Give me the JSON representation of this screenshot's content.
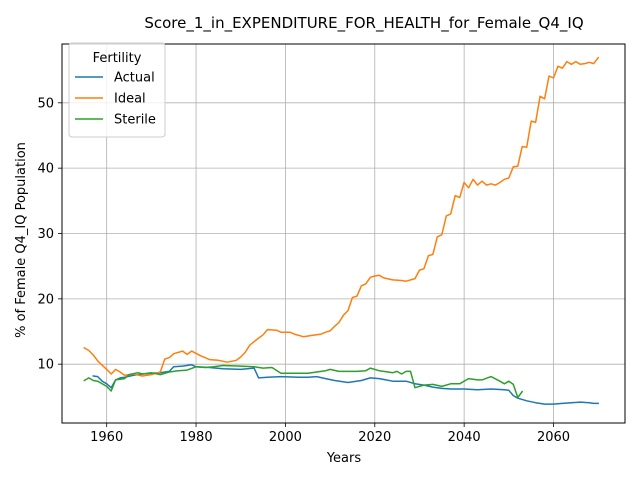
{
  "chart_data": {
    "type": "line",
    "title": "Score_1_in_EXPENDITURE_FOR_HEALTH_for_Female_Q4_IQ",
    "xlabel": "Years",
    "ylabel": "% of Female Q4_IQ Population",
    "xlim": [
      1950,
      2076
    ],
    "ylim": [
      1,
      59
    ],
    "xticks": [
      1960,
      1980,
      2000,
      2020,
      2040,
      2060
    ],
    "yticks": [
      10,
      20,
      30,
      40,
      50
    ],
    "grid": true,
    "legend": {
      "title": "Fertility",
      "placement": "top-left"
    },
    "series": [
      {
        "name": "Actual",
        "color": "#1f77b4",
        "points": [
          [
            1957,
            8.2
          ],
          [
            1958,
            8.1
          ],
          [
            1959,
            7.4
          ],
          [
            1960,
            7.0
          ],
          [
            1961,
            6.4
          ],
          [
            1962,
            7.6
          ],
          [
            1963,
            7.9
          ],
          [
            1964,
            8.0
          ],
          [
            1966,
            8.3
          ],
          [
            1968,
            8.5
          ],
          [
            1970,
            8.6
          ],
          [
            1972,
            8.7
          ],
          [
            1974,
            8.9
          ],
          [
            1975,
            9.6
          ],
          [
            1977,
            9.7
          ],
          [
            1979,
            9.9
          ],
          [
            1980,
            9.6
          ],
          [
            1983,
            9.5
          ],
          [
            1986,
            9.3
          ],
          [
            1990,
            9.2
          ],
          [
            1993,
            9.4
          ],
          [
            1994,
            7.9
          ],
          [
            1996,
            8.0
          ],
          [
            1999,
            8.1
          ],
          [
            2003,
            8.0
          ],
          [
            2005,
            8.0
          ],
          [
            2007,
            8.1
          ],
          [
            2009,
            7.8
          ],
          [
            2011,
            7.5
          ],
          [
            2014,
            7.2
          ],
          [
            2017,
            7.5
          ],
          [
            2019,
            7.9
          ],
          [
            2021,
            7.8
          ],
          [
            2024,
            7.4
          ],
          [
            2027,
            7.4
          ],
          [
            2029,
            7.0
          ],
          [
            2031,
            6.8
          ],
          [
            2033,
            6.5
          ],
          [
            2035,
            6.3
          ],
          [
            2037,
            6.2
          ],
          [
            2040,
            6.2
          ],
          [
            2043,
            6.1
          ],
          [
            2046,
            6.2
          ],
          [
            2049,
            6.1
          ],
          [
            2050,
            6.0
          ],
          [
            2051,
            5.2
          ],
          [
            2052,
            4.8
          ],
          [
            2054,
            4.4
          ],
          [
            2056,
            4.1
          ],
          [
            2058,
            3.9
          ],
          [
            2060,
            3.9
          ],
          [
            2062,
            4.0
          ],
          [
            2064,
            4.1
          ],
          [
            2066,
            4.2
          ],
          [
            2068,
            4.1
          ],
          [
            2069,
            4.0
          ],
          [
            2070,
            4.0
          ]
        ]
      },
      {
        "name": "Ideal",
        "color": "#ff7f0e",
        "points": [
          [
            1955,
            12.5
          ],
          [
            1956,
            12.1
          ],
          [
            1957,
            11.4
          ],
          [
            1958,
            10.5
          ],
          [
            1960,
            9.2
          ],
          [
            1961,
            8.5
          ],
          [
            1962,
            9.2
          ],
          [
            1963,
            8.8
          ],
          [
            1964,
            8.3
          ],
          [
            1966,
            8.5
          ],
          [
            1968,
            8.2
          ],
          [
            1970,
            8.4
          ],
          [
            1972,
            8.8
          ],
          [
            1973,
            10.8
          ],
          [
            1974,
            11.0
          ],
          [
            1975,
            11.6
          ],
          [
            1977,
            12.0
          ],
          [
            1978,
            11.5
          ],
          [
            1979,
            12.0
          ],
          [
            1981,
            11.3
          ],
          [
            1983,
            10.7
          ],
          [
            1985,
            10.6
          ],
          [
            1987,
            10.3
          ],
          [
            1989,
            10.6
          ],
          [
            1990,
            11.1
          ],
          [
            1991,
            11.8
          ],
          [
            1992,
            12.9
          ],
          [
            1994,
            14.0
          ],
          [
            1995,
            14.5
          ],
          [
            1996,
            15.3
          ],
          [
            1998,
            15.2
          ],
          [
            1999,
            14.9
          ],
          [
            2001,
            14.9
          ],
          [
            2002,
            14.6
          ],
          [
            2004,
            14.2
          ],
          [
            2006,
            14.4
          ],
          [
            2008,
            14.6
          ],
          [
            2009,
            14.9
          ],
          [
            2010,
            15.1
          ],
          [
            2011,
            15.8
          ],
          [
            2012,
            16.4
          ],
          [
            2013,
            17.5
          ],
          [
            2014,
            18.2
          ],
          [
            2015,
            20.2
          ],
          [
            2016,
            20.4
          ],
          [
            2017,
            22.0
          ],
          [
            2018,
            22.3
          ],
          [
            2019,
            23.3
          ],
          [
            2020,
            23.5
          ],
          [
            2021,
            23.6
          ],
          [
            2022,
            23.2
          ],
          [
            2024,
            22.9
          ],
          [
            2026,
            22.8
          ],
          [
            2027,
            22.7
          ],
          [
            2029,
            23.1
          ],
          [
            2030,
            24.4
          ],
          [
            2031,
            24.6
          ],
          [
            2032,
            26.6
          ],
          [
            2033,
            26.8
          ],
          [
            2034,
            29.5
          ],
          [
            2035,
            29.8
          ],
          [
            2036,
            32.7
          ],
          [
            2037,
            33.0
          ],
          [
            2038,
            35.8
          ],
          [
            2039,
            35.5
          ],
          [
            2040,
            37.8
          ],
          [
            2041,
            37.0
          ],
          [
            2042,
            38.3
          ],
          [
            2043,
            37.4
          ],
          [
            2044,
            38.0
          ],
          [
            2045,
            37.4
          ],
          [
            2046,
            37.6
          ],
          [
            2047,
            37.4
          ],
          [
            2048,
            37.8
          ],
          [
            2049,
            38.3
          ],
          [
            2050,
            38.5
          ],
          [
            2051,
            40.2
          ],
          [
            2052,
            40.3
          ],
          [
            2053,
            43.3
          ],
          [
            2054,
            43.2
          ],
          [
            2055,
            47.2
          ],
          [
            2056,
            47.0
          ],
          [
            2057,
            51.0
          ],
          [
            2058,
            50.6
          ],
          [
            2059,
            54.1
          ],
          [
            2060,
            53.8
          ],
          [
            2061,
            55.6
          ],
          [
            2062,
            55.3
          ],
          [
            2063,
            56.3
          ],
          [
            2064,
            55.9
          ],
          [
            2065,
            56.3
          ],
          [
            2066,
            55.9
          ],
          [
            2067,
            56.0
          ],
          [
            2068,
            56.2
          ],
          [
            2069,
            56.0
          ],
          [
            2070,
            56.9
          ]
        ]
      },
      {
        "name": "Sterile",
        "color": "#2ca02c",
        "points": [
          [
            1955,
            7.5
          ],
          [
            1956,
            7.9
          ],
          [
            1957,
            7.5
          ],
          [
            1958,
            7.4
          ],
          [
            1960,
            6.6
          ],
          [
            1961,
            5.9
          ],
          [
            1962,
            7.6
          ],
          [
            1964,
            7.8
          ],
          [
            1965,
            8.4
          ],
          [
            1967,
            8.7
          ],
          [
            1968,
            8.5
          ],
          [
            1970,
            8.7
          ],
          [
            1972,
            8.4
          ],
          [
            1974,
            8.8
          ],
          [
            1976,
            9.0
          ],
          [
            1978,
            9.1
          ],
          [
            1980,
            9.6
          ],
          [
            1982,
            9.5
          ],
          [
            1984,
            9.6
          ],
          [
            1986,
            9.8
          ],
          [
            1990,
            9.7
          ],
          [
            1993,
            9.6
          ],
          [
            1995,
            9.4
          ],
          [
            1997,
            9.5
          ],
          [
            1999,
            8.6
          ],
          [
            2001,
            8.6
          ],
          [
            2003,
            8.6
          ],
          [
            2005,
            8.6
          ],
          [
            2007,
            8.8
          ],
          [
            2009,
            9.0
          ],
          [
            2010,
            9.2
          ],
          [
            2012,
            8.9
          ],
          [
            2014,
            8.9
          ],
          [
            2016,
            8.9
          ],
          [
            2018,
            9.0
          ],
          [
            2019,
            9.4
          ],
          [
            2021,
            9.0
          ],
          [
            2023,
            8.8
          ],
          [
            2024,
            8.7
          ],
          [
            2025,
            8.9
          ],
          [
            2026,
            8.5
          ],
          [
            2027,
            8.9
          ],
          [
            2028,
            8.9
          ],
          [
            2029,
            6.4
          ],
          [
            2031,
            6.8
          ],
          [
            2033,
            6.9
          ],
          [
            2035,
            6.6
          ],
          [
            2037,
            7.0
          ],
          [
            2039,
            7.0
          ],
          [
            2041,
            7.8
          ],
          [
            2043,
            7.6
          ],
          [
            2044,
            7.6
          ],
          [
            2046,
            8.1
          ],
          [
            2048,
            7.4
          ],
          [
            2049,
            7.0
          ],
          [
            2050,
            7.4
          ],
          [
            2051,
            6.9
          ],
          [
            2052,
            4.9
          ],
          [
            2053,
            5.8
          ]
        ]
      }
    ]
  }
}
